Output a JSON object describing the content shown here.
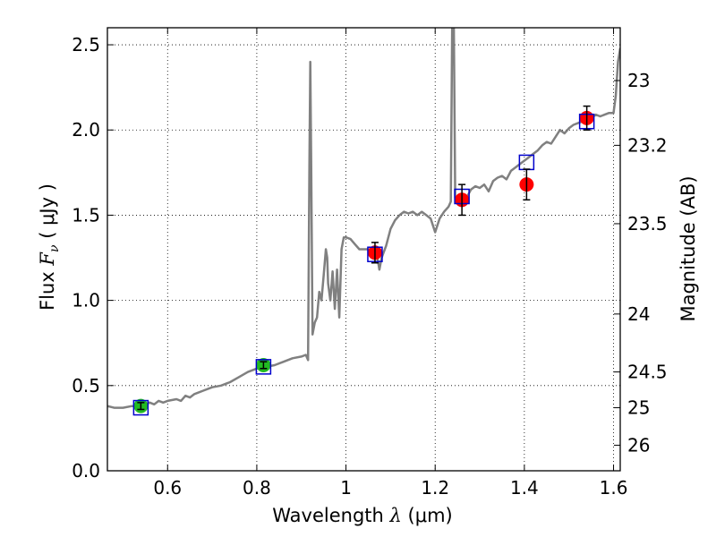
{
  "chart_data": {
    "type": "line",
    "xlabel_prefix": "Wavelength",
    "xlabel_symbol": "λ",
    "xlabel_unit": "(μm)",
    "ylabel_prefix": "Flux",
    "ylabel_symbol": "F",
    "ylabel_subscript": "ν",
    "ylabel_unit": "( μJy )",
    "y2label": "Magnitude (AB)",
    "xlim": [
      0.465,
      1.615
    ],
    "ylim": [
      0.0,
      2.6
    ],
    "x_ticks": [
      0.6,
      0.8,
      1.0,
      1.2,
      1.4,
      1.6
    ],
    "x_tick_labels": [
      "0.6",
      "0.8",
      "1",
      "1.2",
      "1.4",
      "1.6"
    ],
    "y_ticks": [
      0.0,
      0.5,
      1.0,
      1.5,
      2.0,
      2.5
    ],
    "y_tick_labels": [
      "0.0",
      "0.5",
      "1.0",
      "1.5",
      "2.0",
      "2.5"
    ],
    "y2_ticks": [
      {
        "flux": 2.29,
        "label": "23"
      },
      {
        "flux": 1.91,
        "label": "23.2"
      },
      {
        "flux": 1.45,
        "label": "23.5"
      },
      {
        "flux": 0.92,
        "label": "24"
      },
      {
        "flux": 0.58,
        "label": "24.5"
      },
      {
        "flux": 0.37,
        "label": "25"
      },
      {
        "flux": 0.15,
        "label": "26"
      }
    ],
    "grid": true,
    "series": [
      {
        "name": "model spectrum",
        "kind": "line",
        "color": "#808080",
        "points": [
          [
            0.465,
            0.38
          ],
          [
            0.48,
            0.37
          ],
          [
            0.5,
            0.37
          ],
          [
            0.52,
            0.38
          ],
          [
            0.54,
            0.38
          ],
          [
            0.56,
            0.4
          ],
          [
            0.57,
            0.39
          ],
          [
            0.58,
            0.41
          ],
          [
            0.59,
            0.4
          ],
          [
            0.6,
            0.41
          ],
          [
            0.62,
            0.42
          ],
          [
            0.63,
            0.41
          ],
          [
            0.64,
            0.44
          ],
          [
            0.65,
            0.43
          ],
          [
            0.66,
            0.45
          ],
          [
            0.68,
            0.47
          ],
          [
            0.7,
            0.49
          ],
          [
            0.72,
            0.5
          ],
          [
            0.74,
            0.52
          ],
          [
            0.76,
            0.55
          ],
          [
            0.78,
            0.58
          ],
          [
            0.8,
            0.6
          ],
          [
            0.82,
            0.61
          ],
          [
            0.84,
            0.62
          ],
          [
            0.86,
            0.64
          ],
          [
            0.88,
            0.66
          ],
          [
            0.9,
            0.67
          ],
          [
            0.91,
            0.68
          ],
          [
            0.915,
            0.65
          ],
          [
            0.918,
            1.8
          ],
          [
            0.92,
            2.4
          ],
          [
            0.922,
            1.8
          ],
          [
            0.925,
            0.8
          ],
          [
            0.93,
            0.87
          ],
          [
            0.935,
            0.9
          ],
          [
            0.94,
            1.05
          ],
          [
            0.945,
            1.0
          ],
          [
            0.95,
            1.15
          ],
          [
            0.955,
            1.3
          ],
          [
            0.958,
            1.25
          ],
          [
            0.96,
            1.1
          ],
          [
            0.965,
            1.0
          ],
          [
            0.97,
            1.17
          ],
          [
            0.975,
            0.95
          ],
          [
            0.98,
            1.18
          ],
          [
            0.985,
            0.9
          ],
          [
            0.99,
            1.3
          ],
          [
            0.995,
            1.37
          ],
          [
            1.0,
            1.37
          ],
          [
            1.01,
            1.36
          ],
          [
            1.02,
            1.33
          ],
          [
            1.03,
            1.3
          ],
          [
            1.04,
            1.3
          ],
          [
            1.05,
            1.3
          ],
          [
            1.06,
            1.25
          ],
          [
            1.07,
            1.26
          ],
          [
            1.075,
            1.18
          ],
          [
            1.08,
            1.25
          ],
          [
            1.09,
            1.32
          ],
          [
            1.1,
            1.42
          ],
          [
            1.11,
            1.47
          ],
          [
            1.12,
            1.5
          ],
          [
            1.13,
            1.52
          ],
          [
            1.14,
            1.51
          ],
          [
            1.15,
            1.52
          ],
          [
            1.16,
            1.5
          ],
          [
            1.17,
            1.52
          ],
          [
            1.18,
            1.5
          ],
          [
            1.19,
            1.48
          ],
          [
            1.2,
            1.4
          ],
          [
            1.21,
            1.48
          ],
          [
            1.22,
            1.52
          ],
          [
            1.23,
            1.55
          ],
          [
            1.235,
            1.58
          ],
          [
            1.238,
            2.6
          ],
          [
            1.242,
            2.6
          ],
          [
            1.245,
            1.6
          ],
          [
            1.25,
            1.6
          ],
          [
            1.26,
            1.62
          ],
          [
            1.27,
            1.6
          ],
          [
            1.28,
            1.65
          ],
          [
            1.29,
            1.67
          ],
          [
            1.3,
            1.66
          ],
          [
            1.31,
            1.68
          ],
          [
            1.32,
            1.64
          ],
          [
            1.33,
            1.7
          ],
          [
            1.34,
            1.72
          ],
          [
            1.35,
            1.73
          ],
          [
            1.36,
            1.71
          ],
          [
            1.37,
            1.76
          ],
          [
            1.38,
            1.78
          ],
          [
            1.39,
            1.8
          ],
          [
            1.4,
            1.82
          ],
          [
            1.41,
            1.84
          ],
          [
            1.42,
            1.86
          ],
          [
            1.43,
            1.88
          ],
          [
            1.44,
            1.91
          ],
          [
            1.45,
            1.93
          ],
          [
            1.46,
            1.92
          ],
          [
            1.47,
            1.96
          ],
          [
            1.48,
            2.0
          ],
          [
            1.49,
            1.98
          ],
          [
            1.5,
            2.01
          ],
          [
            1.51,
            2.03
          ],
          [
            1.52,
            2.04
          ],
          [
            1.53,
            2.05
          ],
          [
            1.54,
            2.06
          ],
          [
            1.55,
            2.07
          ],
          [
            1.56,
            2.09
          ],
          [
            1.57,
            2.08
          ],
          [
            1.58,
            2.09
          ],
          [
            1.59,
            2.1
          ],
          [
            1.6,
            2.1
          ],
          [
            1.605,
            2.2
          ],
          [
            1.61,
            2.4
          ],
          [
            1.615,
            2.48
          ]
        ]
      },
      {
        "name": "green photometry",
        "kind": "points",
        "color": "#22bb22",
        "points": [
          {
            "x": 0.54,
            "y": 0.38,
            "err": 0.02
          },
          {
            "x": 0.815,
            "y": 0.62,
            "err": 0.02
          }
        ]
      },
      {
        "name": "red photometry",
        "kind": "points",
        "color": "#ff0000",
        "points": [
          {
            "x": 1.065,
            "y": 1.28,
            "err": 0.06
          },
          {
            "x": 1.26,
            "y": 1.59,
            "err": 0.09
          },
          {
            "x": 1.405,
            "y": 1.68,
            "err": 0.09
          },
          {
            "x": 1.54,
            "y": 2.07,
            "err": 0.07
          }
        ]
      },
      {
        "name": "model photometry",
        "kind": "open-squares",
        "color": "#0000cc",
        "points": [
          {
            "x": 0.54,
            "y": 0.37
          },
          {
            "x": 0.815,
            "y": 0.61
          },
          {
            "x": 1.065,
            "y": 1.27
          },
          {
            "x": 1.26,
            "y": 1.61
          },
          {
            "x": 1.405,
            "y": 1.81
          },
          {
            "x": 1.54,
            "y": 2.05
          }
        ]
      }
    ]
  }
}
